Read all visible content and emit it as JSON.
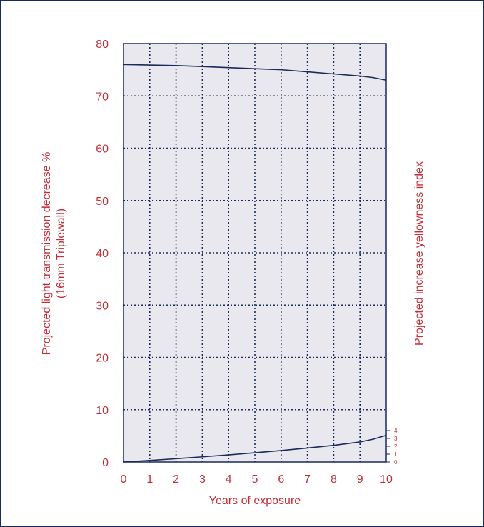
{
  "chart_data": {
    "type": "line",
    "xlabel": "Years of exposure",
    "ylabel_left_line1": "Projected light transmission decrease %",
    "ylabel_left_line2": "(16mm Triplewall)",
    "ylabel_right": "Projected increase yellowness index",
    "xlim": [
      0,
      10
    ],
    "ylim": [
      0,
      80
    ],
    "x_ticks": [
      "0",
      "1",
      "2",
      "3",
      "4",
      "5",
      "6",
      "7",
      "8",
      "9",
      "10"
    ],
    "y_ticks": [
      "0",
      "10",
      "20",
      "30",
      "40",
      "50",
      "60",
      "70",
      "80"
    ],
    "y2_ticks": [
      "0",
      "1",
      "2",
      "3",
      "4"
    ],
    "y2lim": [
      0,
      4
    ],
    "grid": true,
    "colors": {
      "plot_bg": "#e8e8ee",
      "line": "#1a2a5a",
      "text": "#c0303a"
    },
    "series": [
      {
        "axis": "left",
        "x": [
          0,
          1,
          2,
          3,
          4,
          5,
          6,
          7,
          8,
          9,
          9.5,
          10
        ],
        "values": [
          76.0,
          75.9,
          75.8,
          75.6,
          75.4,
          75.2,
          75.0,
          74.6,
          74.2,
          73.8,
          73.5,
          73.0
        ]
      },
      {
        "axis": "right",
        "x": [
          0,
          1,
          2,
          3,
          4,
          5,
          6,
          7,
          8,
          9,
          9.5,
          10
        ],
        "values": [
          0.0,
          0.2,
          0.42,
          0.66,
          0.9,
          1.18,
          1.46,
          1.78,
          2.12,
          2.55,
          2.9,
          3.4
        ]
      }
    ]
  }
}
